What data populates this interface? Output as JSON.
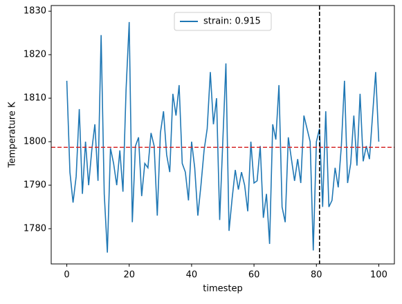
{
  "chart_data": {
    "type": "line",
    "xlabel": "timestep",
    "ylabel": "Temperature K",
    "x": [
      0,
      1,
      2,
      3,
      4,
      5,
      6,
      7,
      8,
      9,
      10,
      11,
      12,
      13,
      14,
      15,
      16,
      17,
      18,
      19,
      20,
      21,
      22,
      23,
      24,
      25,
      26,
      27,
      28,
      29,
      30,
      31,
      32,
      33,
      34,
      35,
      36,
      37,
      38,
      39,
      40,
      41,
      42,
      43,
      44,
      45,
      46,
      47,
      48,
      49,
      50,
      51,
      52,
      53,
      54,
      55,
      56,
      57,
      58,
      59,
      60,
      61,
      62,
      63,
      64,
      65,
      66,
      67,
      68,
      69,
      70,
      71,
      72,
      73,
      74,
      75,
      76,
      77,
      78,
      79,
      80,
      81,
      82,
      83,
      84,
      85,
      86,
      87,
      88,
      89,
      90,
      91,
      92,
      93,
      94,
      95,
      96,
      97,
      98,
      99,
      100
    ],
    "series": [
      {
        "name": "strain: 0.915",
        "color": "#1f77b4",
        "values": [
          1814,
          1793,
          1786,
          1792,
          1807.5,
          1788,
          1800,
          1790,
          1798,
          1804,
          1791,
          1824.5,
          1788,
          1774.5,
          1798.5,
          1795,
          1790,
          1798,
          1788.5,
          1812,
          1827.5,
          1781.5,
          1799,
          1801,
          1787.5,
          1795,
          1794,
          1802,
          1799,
          1783,
          1802,
          1807,
          1797,
          1793,
          1811,
          1806,
          1813,
          1795,
          1793,
          1786.5,
          1800,
          1794,
          1783,
          1790,
          1798,
          1803,
          1816,
          1804,
          1810,
          1782,
          1800,
          1818,
          1779.5,
          1787,
          1793.5,
          1789,
          1793,
          1790,
          1784,
          1800,
          1790.5,
          1791,
          1799,
          1782.5,
          1788,
          1776.5,
          1804,
          1800.5,
          1813,
          1785,
          1781.5,
          1801,
          1796,
          1791,
          1796,
          1790.5,
          1806,
          1803,
          1800,
          1775,
          1800,
          1803,
          1785,
          1807,
          1785,
          1786.5,
          1794,
          1789.5,
          1799,
          1814,
          1790.5,
          1795,
          1806,
          1794.5,
          1811,
          1795.5,
          1799,
          1796,
          1806,
          1816,
          1800
        ]
      }
    ],
    "hlines": [
      {
        "value": 1798.7,
        "color": "#d62728"
      }
    ],
    "vlines": [
      {
        "value": 81,
        "color": "#000000"
      }
    ],
    "xlim": [
      -5,
      105
    ],
    "ylim": [
      1771.9,
      1831.3
    ],
    "xticks": [
      0,
      20,
      40,
      60,
      80,
      100
    ],
    "yticks": [
      1780,
      1790,
      1800,
      1810,
      1820,
      1830
    ],
    "legend": "upper center"
  }
}
